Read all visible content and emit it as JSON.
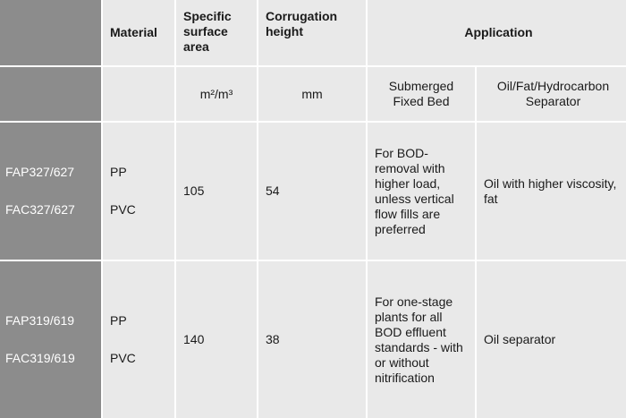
{
  "header": {
    "material": "Material",
    "surface": "Specific surface area",
    "height": "Corrugation height",
    "application": "Application"
  },
  "units": {
    "surface": "m²/m³",
    "height": "mm",
    "submerged": "Submerged Fixed Bed",
    "separator": "Oil/Fat/Hydrocarbon Separator"
  },
  "rows": [
    {
      "codes": [
        "FAP327/627",
        "FAC327/627"
      ],
      "materials": [
        "PP",
        "PVC"
      ],
      "surface": 105,
      "height": 54,
      "submerged": "For BOD-removal with higher load, unless vertical flow fills are preferred",
      "separator": "Oil with higher viscosity, fat"
    },
    {
      "codes": [
        "FAP319/619",
        "FAC319/619"
      ],
      "materials": [
        "PP",
        "PVC"
      ],
      "surface": 140,
      "height": 38,
      "submerged": "For one-stage plants for all BOD effluent standards - with or without nitrification",
      "separator": "Oil separator"
    }
  ]
}
